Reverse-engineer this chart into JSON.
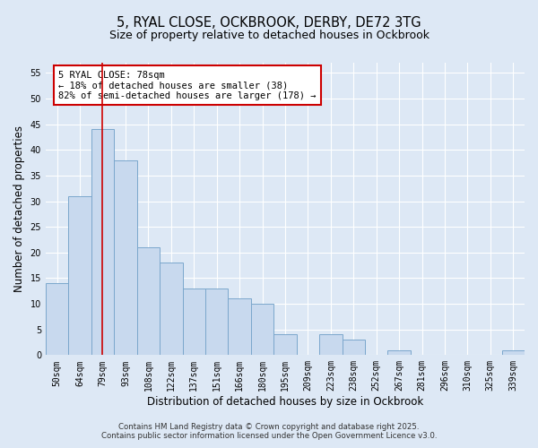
{
  "title": "5, RYAL CLOSE, OCKBROOK, DERBY, DE72 3TG",
  "subtitle": "Size of property relative to detached houses in Ockbrook",
  "xlabel": "Distribution of detached houses by size in Ockbrook",
  "ylabel": "Number of detached properties",
  "categories": [
    "50sqm",
    "64sqm",
    "79sqm",
    "93sqm",
    "108sqm",
    "122sqm",
    "137sqm",
    "151sqm",
    "166sqm",
    "180sqm",
    "195sqm",
    "209sqm",
    "223sqm",
    "238sqm",
    "252sqm",
    "267sqm",
    "281sqm",
    "296sqm",
    "310sqm",
    "325sqm",
    "339sqm"
  ],
  "values": [
    14,
    31,
    44,
    38,
    21,
    18,
    13,
    13,
    11,
    10,
    4,
    0,
    4,
    3,
    0,
    1,
    0,
    0,
    0,
    0,
    1
  ],
  "bar_color": "#c8d9ee",
  "bar_edge_color": "#7ba7cc",
  "vline_x_index": 2,
  "vline_color": "#cc0000",
  "annotation_box_text": "5 RYAL CLOSE: 78sqm\n← 18% of detached houses are smaller (38)\n82% of semi-detached houses are larger (178) →",
  "ylim": [
    0,
    57
  ],
  "yticks": [
    0,
    5,
    10,
    15,
    20,
    25,
    30,
    35,
    40,
    45,
    50,
    55
  ],
  "footer1": "Contains HM Land Registry data © Crown copyright and database right 2025.",
  "footer2": "Contains public sector information licensed under the Open Government Licence v3.0.",
  "bg_color": "#dde8f5",
  "grid_color": "#ffffff",
  "title_fontsize": 10.5,
  "subtitle_fontsize": 9,
  "tick_fontsize": 7,
  "label_fontsize": 8.5,
  "footer_fontsize": 6.2,
  "annot_fontsize": 7.5
}
